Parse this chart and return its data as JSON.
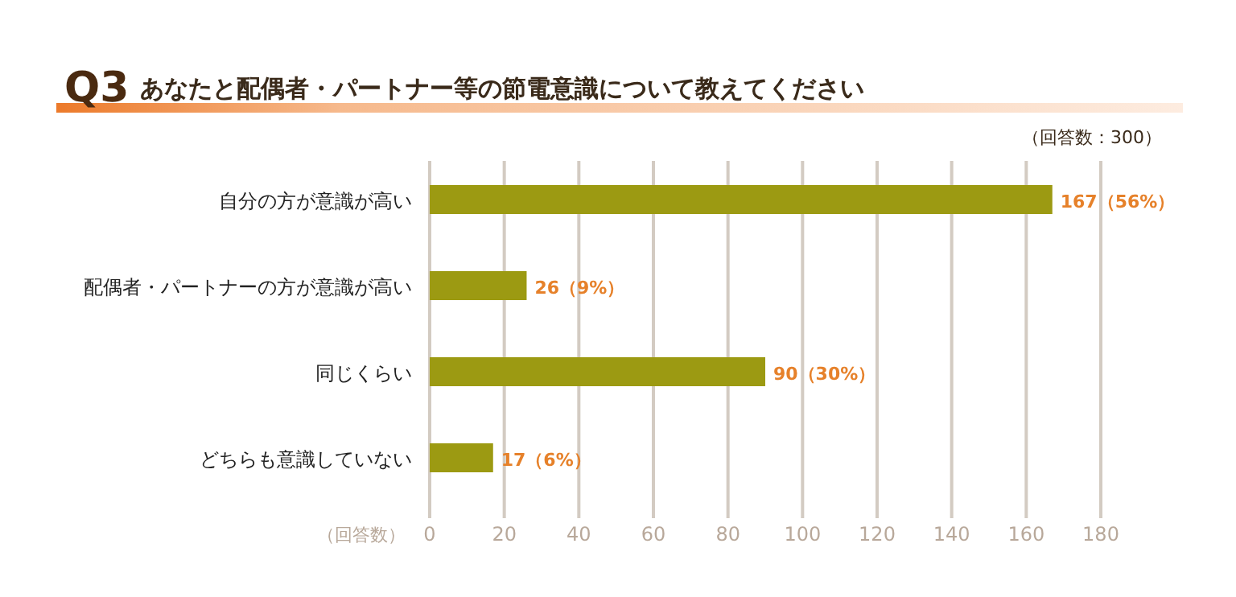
{
  "chart_data": {
    "type": "bar",
    "orientation": "horizontal",
    "title": "Q3",
    "subtitle": "あなたと配偶者・パートナー等の節電意識について教えてください",
    "xlabel": "（回答数）",
    "annotations": [
      "（回答数：300）"
    ],
    "categories": [
      "自分の方が意識が高い",
      "配偶者・パートナーの方が意識が高い",
      "同じくらい",
      "どちらも意識していない"
    ],
    "values": [
      167,
      26,
      90,
      17
    ],
    "value_labels": [
      "167（56%）",
      "26（9%）",
      "90（30%）",
      "17（6%）"
    ],
    "color": "#9c9a12",
    "xlim": [
      0,
      180
    ],
    "xticks": [
      0,
      20,
      40,
      60,
      80,
      100,
      120,
      140,
      160,
      180
    ],
    "grid": "x"
  }
}
